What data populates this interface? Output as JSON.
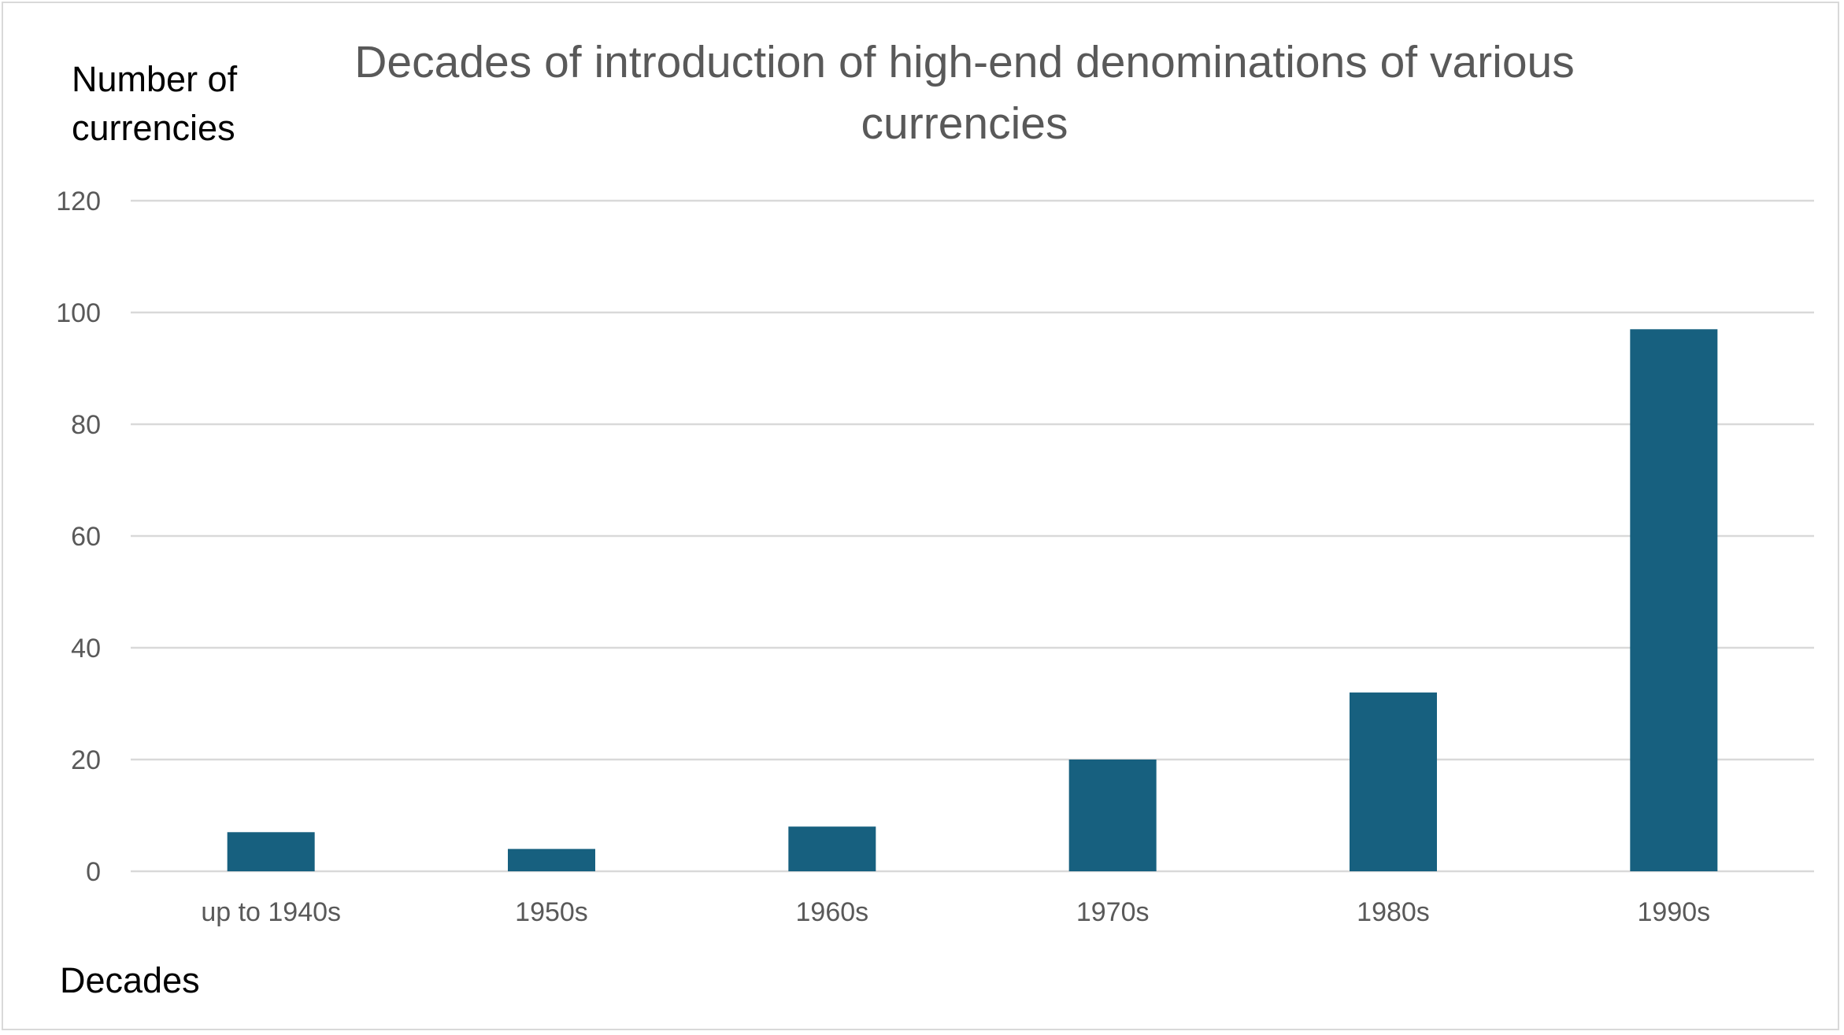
{
  "chart_data": {
    "type": "bar",
    "title": "Decades of introduction of high-end denominations of various currencies",
    "ylabel": "Number of\ncurrencies",
    "xlabel": "Decades",
    "categories": [
      "up to 1940s",
      "1950s",
      "1960s",
      "1970s",
      "1980s",
      "1990s"
    ],
    "values": [
      7,
      4,
      8,
      20,
      32,
      97
    ],
    "ylim": [
      0,
      120
    ],
    "yticks": [
      "0",
      "20",
      "40",
      "60",
      "80",
      "100",
      "120"
    ],
    "grid": true,
    "legend": "none",
    "bar_color": "#17607f",
    "grid_color": "#d9d9d9"
  }
}
